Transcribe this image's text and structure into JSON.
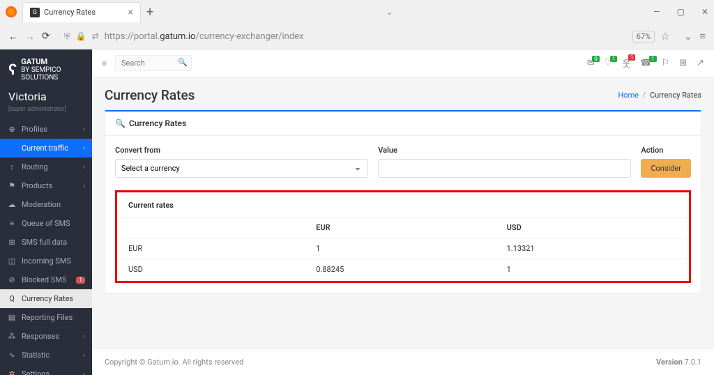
{
  "browser": {
    "tab_title": "Currency Rates",
    "url_prefix": "https://portal.",
    "url_domain": "gatum.io",
    "url_path": "/currency-exchanger/index",
    "zoom": "67%"
  },
  "brand": {
    "line1": "GATUM",
    "line2": "BY SEMPICO SOLUTIONS"
  },
  "user": {
    "name": "Victoria",
    "role": "[super administrator]"
  },
  "sidebar": {
    "items": [
      {
        "icon": "⊕",
        "label": "Profiles",
        "chevron": true
      },
      {
        "icon": "",
        "label": "Current traffic",
        "chevron": true,
        "active": true
      },
      {
        "icon": "↕",
        "label": "Routing",
        "chevron": true
      },
      {
        "icon": "⚑",
        "label": "Products",
        "chevron": true
      },
      {
        "icon": "☁",
        "label": "Moderation"
      },
      {
        "icon": "≡",
        "label": "Queue of SMS"
      },
      {
        "icon": "⊞",
        "label": "SMS full data"
      },
      {
        "icon": "◫",
        "label": "Incoming SMS"
      },
      {
        "icon": "⊘",
        "label": "Blocked SMS",
        "badge": "1"
      },
      {
        "icon": "Q",
        "label": "Currency Rates",
        "active_light": true
      },
      {
        "icon": "▤",
        "label": "Reporting Files"
      },
      {
        "icon": "⁂",
        "label": "Responses",
        "chevron": true
      },
      {
        "icon": "∿",
        "label": "Statistic",
        "chevron": true
      },
      {
        "icon": "✲",
        "label": "Settings",
        "chevron": true,
        "color": "#d98"
      }
    ]
  },
  "topbar": {
    "search_placeholder": "Search",
    "notifications": [
      {
        "icon": "✉",
        "badge": "0",
        "cls": "bg-green"
      },
      {
        "icon": "♡",
        "badge": "1",
        "cls": "bg-green"
      },
      {
        "icon": "웃",
        "badge": "1",
        "cls": "bg-red"
      },
      {
        "icon": "☎",
        "badge": "1",
        "cls": "bg-green"
      }
    ]
  },
  "page": {
    "title": "Currency Rates",
    "breadcrumb_home": "Home",
    "breadcrumb_current": "Currency Rates"
  },
  "panel": {
    "heading": "Currency Rates",
    "convert_from_label": "Convert from",
    "select_placeholder": "Select a currency",
    "value_label": "Value",
    "action_label": "Action",
    "consider_btn": "Consider"
  },
  "rates": {
    "heading": "Current rates",
    "columns": [
      "",
      "EUR",
      "USD"
    ],
    "rows": [
      [
        "EUR",
        "1",
        "1.13321"
      ],
      [
        "USD",
        "0.88245",
        "1"
      ]
    ]
  },
  "footer": {
    "copyright": "Copyright © Gatum.io. All rights reserved",
    "version_label": "Version ",
    "version": "7.0.1"
  }
}
